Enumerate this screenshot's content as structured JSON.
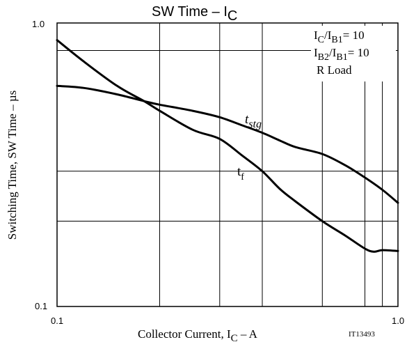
{
  "chart_data": {
    "type": "line",
    "title_main": "SW Time  –  I",
    "title_sub": "C",
    "xlabel_main": "Collector Current, I",
    "xlabel_sub": "C",
    "xlabel_unit": "  –  A",
    "ylabel": "Switching Time, SW Time  –  µs",
    "xscale": "log",
    "yscale": "log",
    "xlim": [
      0.1,
      1.0
    ],
    "ylim": [
      0.1,
      1.0
    ],
    "x_ticks": [
      "0.1",
      "1.0"
    ],
    "y_ticks": [
      "0.1",
      "1.0"
    ],
    "grid": true,
    "conditions": [
      {
        "a": "I",
        "a_sub": "C",
        "b": "/I",
        "b_sub": "B1",
        "c": "= 10"
      },
      {
        "a": "I",
        "a_sub": "B2",
        "b": "/I",
        "b_sub": "B1",
        "c": "= 10"
      },
      {
        "a": "R Load",
        "a_sub": "",
        "b": "",
        "b_sub": "",
        "c": ""
      }
    ],
    "figure_code": "IT13493",
    "series": [
      {
        "name": "t",
        "name_sub": "stg",
        "label_style": "italic",
        "x": [
          0.1,
          0.12,
          0.15,
          0.18,
          0.2,
          0.25,
          0.3,
          0.35,
          0.4,
          0.45,
          0.5,
          0.6,
          0.7,
          0.8,
          0.9,
          1.0
        ],
        "y": [
          0.6,
          0.59,
          0.56,
          0.53,
          0.515,
          0.49,
          0.465,
          0.435,
          0.41,
          0.385,
          0.365,
          0.345,
          0.315,
          0.285,
          0.258,
          0.232
        ]
      },
      {
        "name": "t",
        "name_sub": "f",
        "label_style": "normal",
        "x": [
          0.1,
          0.12,
          0.15,
          0.18,
          0.2,
          0.25,
          0.3,
          0.35,
          0.4,
          0.45,
          0.5,
          0.6,
          0.7,
          0.8,
          0.85,
          0.9,
          1.0
        ],
        "y": [
          0.87,
          0.73,
          0.6,
          0.53,
          0.49,
          0.42,
          0.39,
          0.34,
          0.3,
          0.26,
          0.235,
          0.2,
          0.178,
          0.16,
          0.156,
          0.158,
          0.157
        ]
      }
    ]
  }
}
